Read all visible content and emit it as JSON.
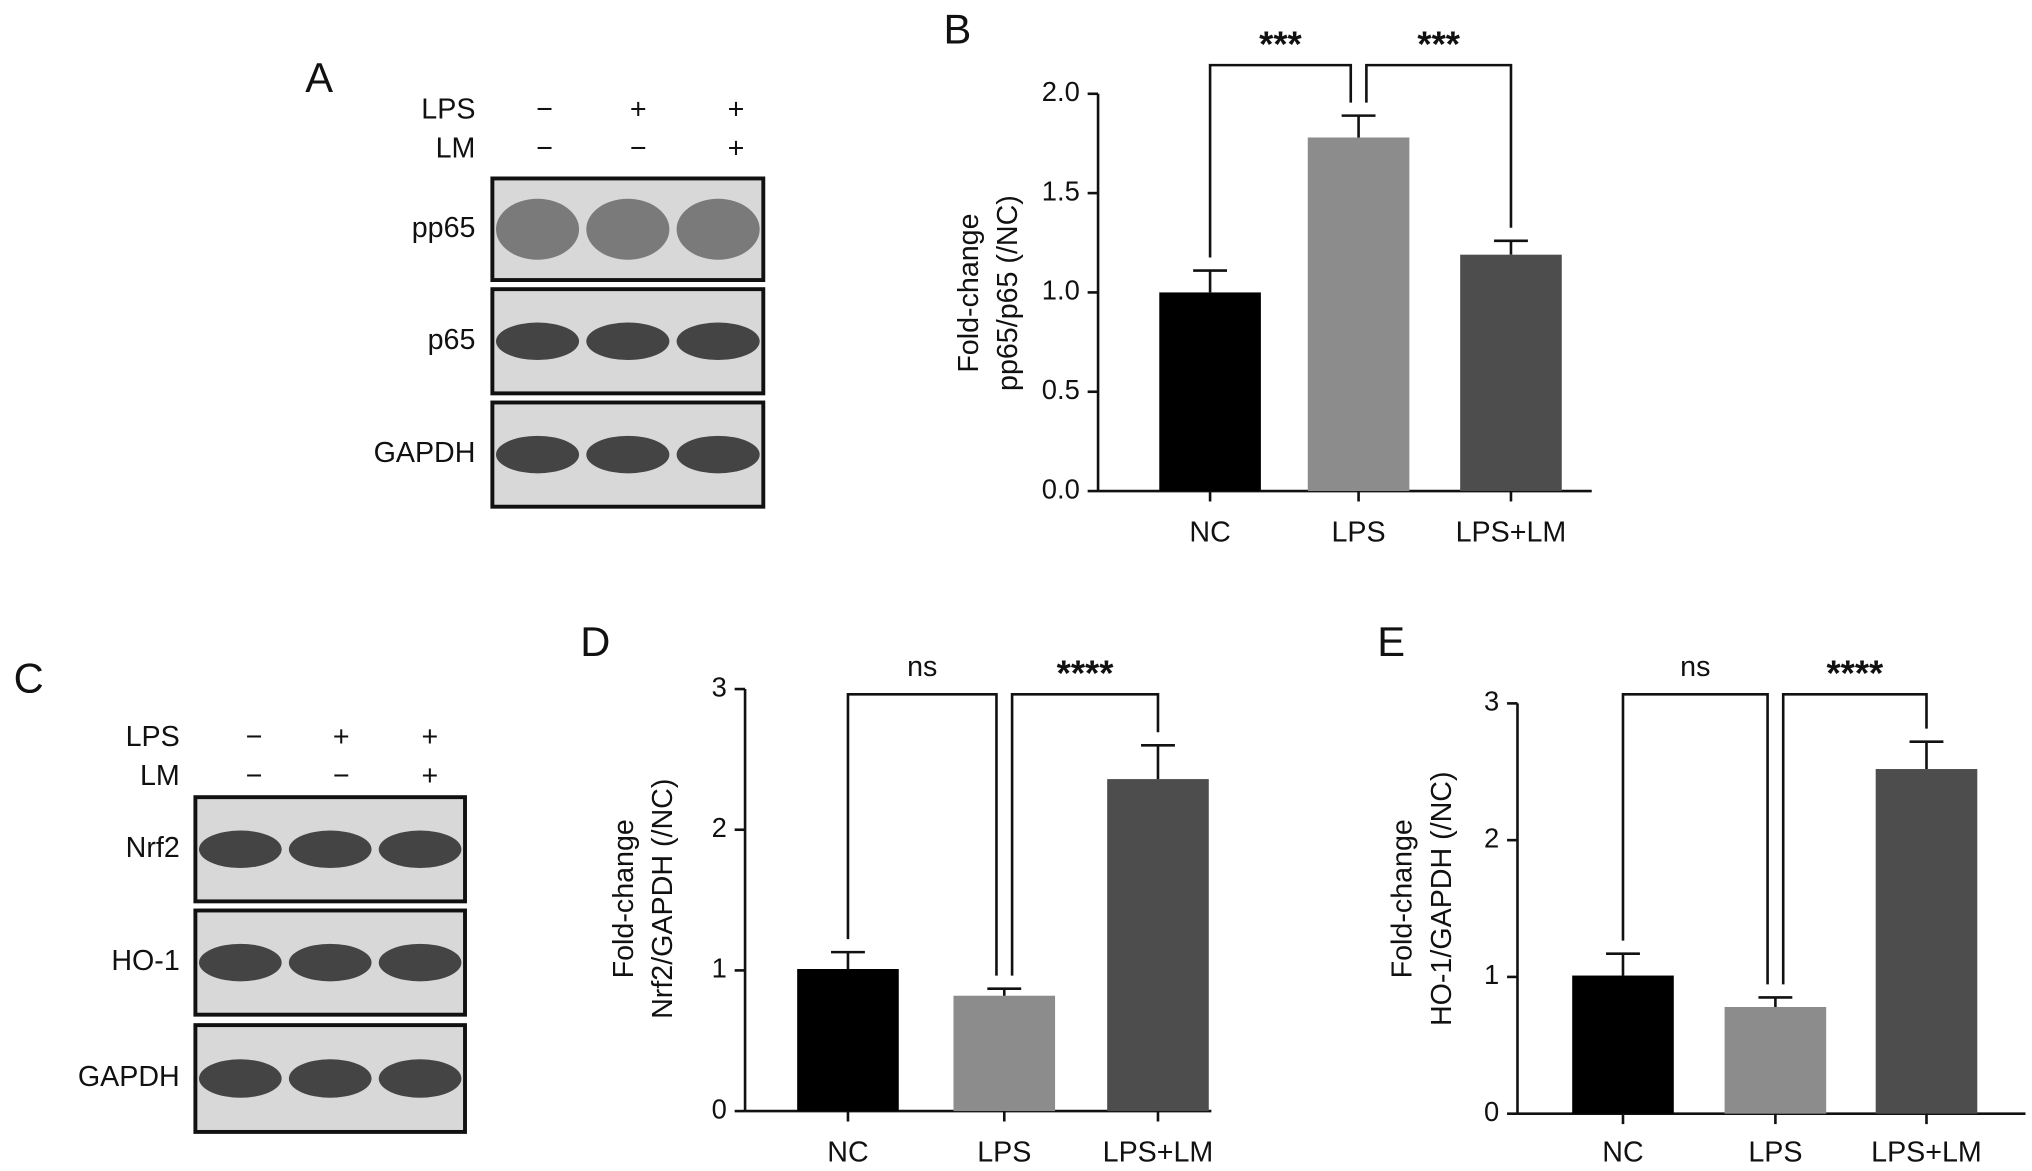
{
  "blots": [
    {
      "panel": "A",
      "treatments": [
        {
          "name": "LPS",
          "signs": [
            "−",
            "+",
            "+"
          ]
        },
        {
          "name": "LM",
          "signs": [
            "−",
            "−",
            "+"
          ]
        }
      ],
      "bands": [
        "pp65",
        "p65",
        "GAPDH"
      ]
    },
    {
      "panel": "C",
      "treatments": [
        {
          "name": "LPS",
          "signs": [
            "−",
            "+",
            "+"
          ]
        },
        {
          "name": "LM",
          "signs": [
            "−",
            "−",
            "+"
          ]
        }
      ],
      "bands": [
        "Nrf2",
        "HO-1",
        "GAPDH"
      ]
    }
  ],
  "chart_data": [
    {
      "type": "bar",
      "panel": "B",
      "ylabel": [
        "Fold-change",
        "pp65/p65 (/NC)"
      ],
      "categories": [
        "NC",
        "LPS",
        "LPS+LM"
      ],
      "values": [
        1.0,
        1.78,
        1.19
      ],
      "errors": [
        0.11,
        0.11,
        0.07
      ],
      "colors": [
        "#000000",
        "#8c8c8c",
        "#4d4d4d"
      ],
      "ylim": [
        0,
        2.0
      ],
      "yticks": [
        {
          "value": 0,
          "label": "0.0"
        },
        {
          "value": 0.5,
          "label": "0.5"
        },
        {
          "value": 1,
          "label": "1.0"
        },
        {
          "value": 1.5,
          "label": "1.5"
        },
        {
          "value": 2,
          "label": "2.0"
        }
      ],
      "comparisons": [
        {
          "from": 0,
          "to": 1,
          "label": "***"
        },
        {
          "from": 1,
          "to": 2,
          "label": "***"
        }
      ]
    },
    {
      "type": "bar",
      "panel": "D",
      "ylabel": [
        "Fold-change",
        "Nrf2/GAPDH (/NC)"
      ],
      "categories": [
        "NC",
        "LPS",
        "LPS+LM"
      ],
      "values": [
        1.01,
        0.82,
        2.36
      ],
      "errors": [
        0.12,
        0.05,
        0.24
      ],
      "colors": [
        "#000000",
        "#8c8c8c",
        "#4d4d4d"
      ],
      "ylim": [
        0,
        3
      ],
      "yticks": [
        0,
        1,
        2,
        3
      ],
      "comparisons": [
        {
          "from": 0,
          "to": 1,
          "label": "ns"
        },
        {
          "from": 1,
          "to": 2,
          "label": "****"
        }
      ]
    },
    {
      "type": "bar",
      "panel": "E",
      "ylabel": [
        "Fold-change",
        "HO-1/GAPDH (/NC)"
      ],
      "categories": [
        "NC",
        "LPS",
        "LPS+LM"
      ],
      "values": [
        1.01,
        0.78,
        2.52
      ],
      "errors": [
        0.16,
        0.07,
        0.2
      ],
      "colors": [
        "#000000",
        "#8c8c8c",
        "#4d4d4d"
      ],
      "ylim": [
        0,
        3
      ],
      "yticks": [
        0,
        1,
        2,
        3
      ],
      "comparisons": [
        {
          "from": 0,
          "to": 1,
          "label": "ns"
        },
        {
          "from": 1,
          "to": 2,
          "label": "****"
        }
      ]
    }
  ]
}
